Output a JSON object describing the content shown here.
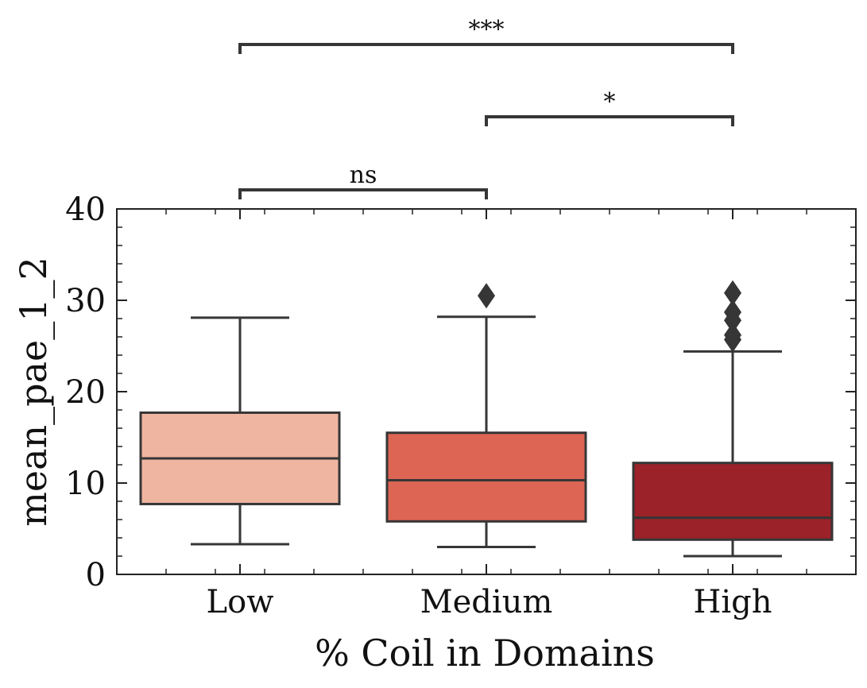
{
  "chart_data": {
    "type": "box",
    "xlabel": "% Coil in Domains",
    "ylabel": "mean_pae_1_2",
    "ylim": [
      0,
      40
    ],
    "yticks": [
      0,
      10,
      20,
      30,
      40
    ],
    "grid": false,
    "categories": [
      "Low",
      "Medium",
      "High"
    ],
    "boxes": [
      {
        "category": "Low",
        "whisker_low": 3.3,
        "q1": 7.7,
        "median": 12.7,
        "q3": 17.7,
        "whisker_high": 28.1,
        "outliers": [],
        "color": "#f0b5a0"
      },
      {
        "category": "Medium",
        "whisker_low": 3.0,
        "q1": 5.8,
        "median": 10.3,
        "q3": 15.5,
        "whisker_high": 28.2,
        "outliers": [
          30.5
        ],
        "color": "#dd6554"
      },
      {
        "category": "High",
        "whisker_low": 2.0,
        "q1": 3.8,
        "median": 6.2,
        "q3": 12.2,
        "whisker_high": 24.4,
        "outliers": [
          25.7,
          26.2,
          27.8,
          28.7,
          30.8
        ],
        "color": "#9b2229"
      }
    ],
    "significance": [
      {
        "from": "Low",
        "to": "Medium",
        "label": "ns",
        "level": 1
      },
      {
        "from": "Medium",
        "to": "High",
        "label": "*",
        "level": 2
      },
      {
        "from": "Low",
        "to": "High",
        "label": "***",
        "level": 3
      }
    ],
    "colors": {
      "edge": "#363636",
      "axis": "#222222"
    }
  }
}
